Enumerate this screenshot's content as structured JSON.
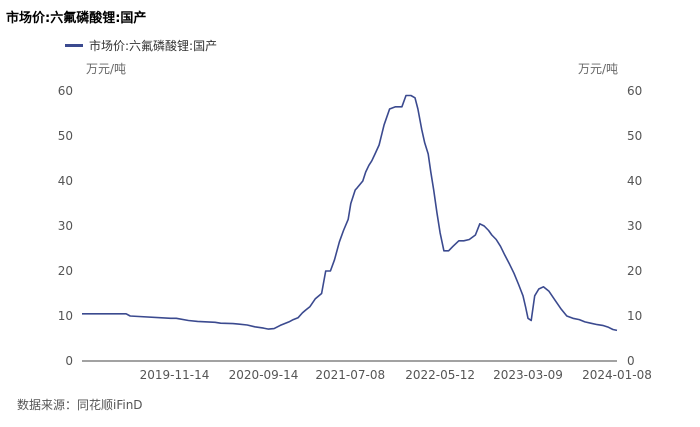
{
  "chart_data": {
    "type": "line",
    "title": "市场价:六氟磷酸锂:国产",
    "unit_left": "万元/吨",
    "unit_right": "万元/吨",
    "ylim": [
      0,
      60
    ],
    "y_ticks": [
      0,
      10,
      20,
      30,
      40,
      50,
      60
    ],
    "x_ticks": [
      "2019-11-14",
      "2020-09-14",
      "2021-07-08",
      "2022-05-12",
      "2023-03-09",
      "2024-01-08"
    ],
    "legend_position": "top-left",
    "grid": false,
    "series": [
      {
        "name": "市场价:六氟磷酸锂:国产",
        "color": "#3b4a8f",
        "x": [
          "2019-01-01",
          "2019-06-01",
          "2019-06-15",
          "2019-11-01",
          "2019-11-20",
          "2020-01-01",
          "2020-02-01",
          "2020-04-01",
          "2020-04-20",
          "2020-06-01",
          "2020-06-20",
          "2020-07-20",
          "2020-08-15",
          "2020-09-14",
          "2020-10-01",
          "2020-10-20",
          "2020-11-10",
          "2020-12-10",
          "2020-12-25",
          "2021-01-10",
          "2021-01-25",
          "2021-02-05",
          "2021-02-20",
          "2021-03-10",
          "2021-04-01",
          "2021-04-15",
          "2021-05-01",
          "2021-05-15",
          "2021-06-01",
          "2021-06-15",
          "2021-07-01",
          "2021-07-10",
          "2021-07-25",
          "2021-08-01",
          "2021-08-20",
          "2021-08-30",
          "2021-09-10",
          "2021-09-20",
          "2021-10-01",
          "2021-10-15",
          "2021-11-01",
          "2021-11-20",
          "2021-12-10",
          "2022-01-01",
          "2022-01-15",
          "2022-02-01",
          "2022-02-15",
          "2022-02-25",
          "2022-03-10",
          "2022-03-20",
          "2022-04-01",
          "2022-04-10",
          "2022-04-20",
          "2022-05-01",
          "2022-05-12",
          "2022-05-25",
          "2022-06-10",
          "2022-06-25",
          "2022-07-15",
          "2022-08-01",
          "2022-08-20",
          "2022-09-10",
          "2022-09-25",
          "2022-10-10",
          "2022-10-25",
          "2022-11-05",
          "2022-11-20",
          "2022-12-05",
          "2022-12-20",
          "2023-01-05",
          "2023-01-20",
          "2023-02-05",
          "2023-02-20",
          "2023-03-01",
          "2023-03-09",
          "2023-03-20",
          "2023-04-01",
          "2023-04-15",
          "2023-05-01",
          "2023-05-20",
          "2023-06-10",
          "2023-07-01",
          "2023-07-20",
          "2023-08-10",
          "2023-09-01",
          "2023-09-20",
          "2023-10-10",
          "2023-11-01",
          "2023-11-20",
          "2023-12-10",
          "2023-12-25",
          "2024-01-08"
        ],
        "values": [
          10.5,
          10.5,
          10.0,
          9.5,
          9.5,
          9.0,
          8.8,
          8.6,
          8.4,
          8.3,
          8.2,
          8.0,
          7.6,
          7.3,
          7.1,
          7.2,
          7.9,
          8.7,
          9.2,
          9.6,
          10.7,
          11.3,
          12.1,
          13.8,
          15.0,
          20.0,
          20.0,
          22.5,
          26.5,
          29.0,
          31.5,
          35.0,
          38.0,
          38.5,
          40.0,
          42.0,
          43.5,
          44.5,
          46.0,
          48.0,
          52.5,
          56.0,
          56.5,
          56.5,
          59.0,
          59.0,
          58.5,
          56.0,
          51.5,
          48.5,
          46.0,
          42.0,
          38.0,
          33.0,
          28.5,
          24.5,
          24.5,
          25.5,
          26.7,
          26.7,
          27.0,
          28.0,
          30.5,
          30.0,
          29.0,
          28.0,
          27.0,
          25.5,
          23.5,
          21.5,
          19.5,
          17.0,
          14.5,
          12.0,
          9.5,
          9.0,
          14.5,
          16.0,
          16.5,
          15.5,
          13.5,
          11.5,
          10.0,
          9.5,
          9.2,
          8.7,
          8.4,
          8.1,
          7.9,
          7.5,
          7.0,
          6.8
        ]
      }
    ]
  }
}
